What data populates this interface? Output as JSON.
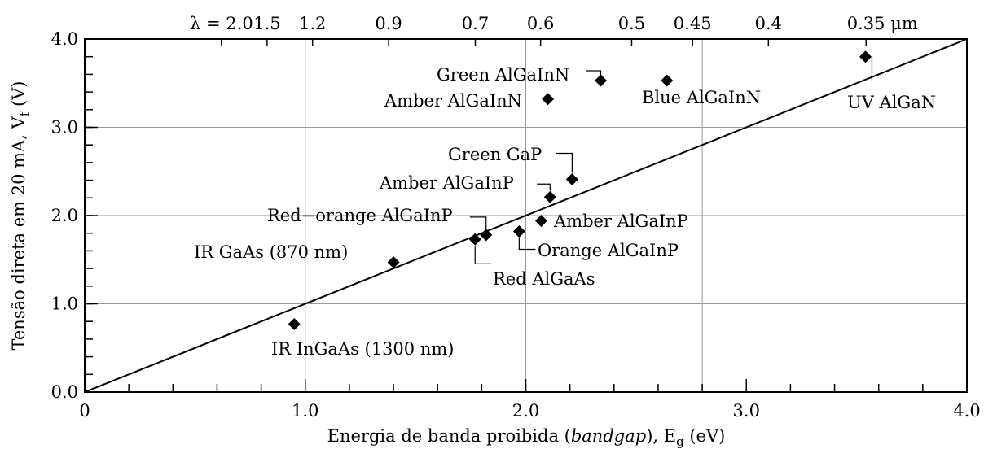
{
  "chart_data": {
    "type": "scatter",
    "xlabel": {
      "prefix": "Energia de banda proibida (",
      "italic": "bandgap",
      "suffix": "), E",
      "sub": "g",
      "unit": " (eV)"
    },
    "ylabel": {
      "prefix": "Tensão direta em 20 mA, V",
      "sub": "f",
      "unit": " (V)"
    },
    "xlim": [
      0,
      4.0
    ],
    "ylim": [
      0,
      4.0
    ],
    "x_ticks": [
      {
        "value": 0,
        "label": "0"
      },
      {
        "value": 1.0,
        "label": "1.0"
      },
      {
        "value": 2.0,
        "label": "2.0"
      },
      {
        "value": 3.0,
        "label": "3.0"
      },
      {
        "value": 4.0,
        "label": "4.0"
      }
    ],
    "x_minor_step": 0.2,
    "y_ticks": [
      {
        "value": 0,
        "label": "0.0"
      },
      {
        "value": 1.0,
        "label": "1.0"
      },
      {
        "value": 2.0,
        "label": "2.0"
      },
      {
        "value": 3.0,
        "label": "3.0"
      },
      {
        "value": 4.0,
        "label": "4.0"
      }
    ],
    "y_minor_step": 0.2,
    "grid_x": [
      1.0,
      2.0,
      2.8
    ],
    "grid_y": [
      1.0,
      2.0,
      3.0
    ],
    "top_axis": [
      {
        "label": "λ = 2.0",
        "energy": 0.62
      },
      {
        "label": "1.5",
        "energy": 0.827
      },
      {
        "label": "1.2",
        "energy": 1.033
      },
      {
        "label": "0.9",
        "energy": 1.378
      },
      {
        "label": "0.7",
        "energy": 1.771
      },
      {
        "label": "0.6",
        "energy": 2.067
      },
      {
        "label": "0.5",
        "energy": 2.48
      },
      {
        "label": "0.45",
        "energy": 2.756
      },
      {
        "label": "0.4",
        "energy": 3.1
      },
      {
        "label": "0.35 μm",
        "energy": 3.543
      }
    ],
    "fit_line": {
      "x": [
        0,
        4.0
      ],
      "y": [
        0,
        4.0
      ]
    },
    "points": [
      {
        "label": "IR InGaAs (1300 nm)",
        "x": 0.95,
        "y": 0.77
      },
      {
        "label": "IR GaAs (870 nm)",
        "x": 1.4,
        "y": 1.47
      },
      {
        "label": "Red AlGaAs",
        "x": 1.77,
        "y": 1.73
      },
      {
        "label": "Red−orange AlGaInP",
        "x": 1.82,
        "y": 1.78
      },
      {
        "label": "Orange AlGaInP",
        "x": 1.97,
        "y": 1.82
      },
      {
        "label": "Amber AlGaInP",
        "x": 2.07,
        "y": 1.94
      },
      {
        "label": "Amber AlGaInP",
        "x": 2.11,
        "y": 2.21
      },
      {
        "label": "Green GaP",
        "x": 2.21,
        "y": 2.41
      },
      {
        "label": "Amber AlGaInN",
        "x": 2.1,
        "y": 3.32
      },
      {
        "label": "Green AlGaInN",
        "x": 2.34,
        "y": 3.53
      },
      {
        "label": "Blue AlGaInN",
        "x": 2.64,
        "y": 3.53
      },
      {
        "label": "UV AlGaN",
        "x": 3.54,
        "y": 3.8
      }
    ]
  }
}
